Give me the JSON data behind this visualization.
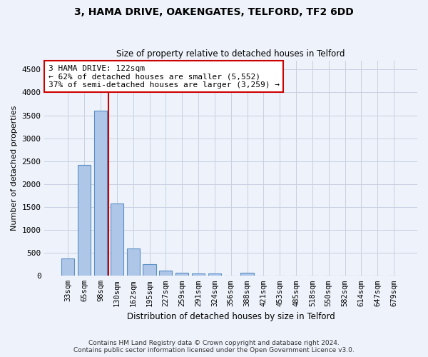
{
  "title": "3, HAMA DRIVE, OAKENGATES, TELFORD, TF2 6DD",
  "subtitle": "Size of property relative to detached houses in Telford",
  "xlabel": "Distribution of detached houses by size in Telford",
  "ylabel": "Number of detached properties",
  "categories": [
    "33sqm",
    "65sqm",
    "98sqm",
    "130sqm",
    "162sqm",
    "195sqm",
    "227sqm",
    "259sqm",
    "291sqm",
    "324sqm",
    "356sqm",
    "388sqm",
    "421sqm",
    "453sqm",
    "485sqm",
    "518sqm",
    "550sqm",
    "582sqm",
    "614sqm",
    "647sqm",
    "679sqm"
  ],
  "values": [
    380,
    2420,
    3610,
    1580,
    590,
    250,
    120,
    70,
    50,
    50,
    0,
    60,
    0,
    0,
    0,
    0,
    0,
    0,
    0,
    0,
    0
  ],
  "bar_color": "#aec6e8",
  "bar_edge_color": "#5a8fc4",
  "vline_x": 2.5,
  "vline_color": "#cc0000",
  "annotation_text": "3 HAMA DRIVE: 122sqm\n← 62% of detached houses are smaller (5,552)\n37% of semi-detached houses are larger (3,259) →",
  "annotation_box_color": "#ffffff",
  "annotation_box_edge": "#cc0000",
  "ylim": [
    0,
    4700
  ],
  "yticks": [
    0,
    500,
    1000,
    1500,
    2000,
    2500,
    3000,
    3500,
    4000,
    4500
  ],
  "footnote": "Contains HM Land Registry data © Crown copyright and database right 2024.\nContains public sector information licensed under the Open Government Licence v3.0.",
  "bg_color": "#eef2fa",
  "plot_bg_color": "#eef2fa",
  "grid_color": "#c8cfe0"
}
